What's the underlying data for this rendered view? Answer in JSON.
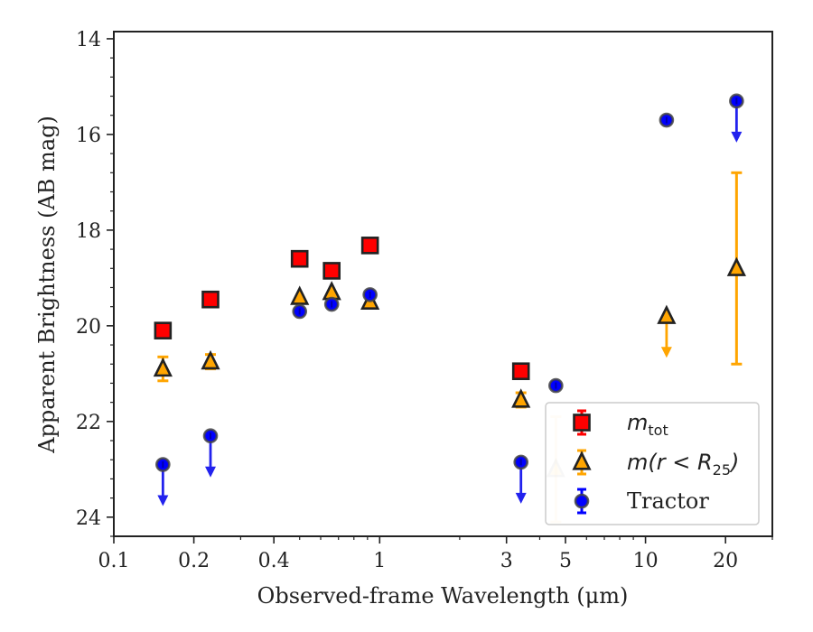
{
  "chart_data": {
    "type": "scatter",
    "title": "",
    "xlabel": "Observed-frame Wavelength (μm)",
    "ylabel": "Apparent Brightness (AB mag)",
    "xscale": "log",
    "xlim": [
      0.1,
      30
    ],
    "ylim": [
      24.4,
      13.85
    ],
    "y_inverted": true,
    "grid": false,
    "legend_position": "lower-right",
    "x_ticks": [
      {
        "value": 0.1,
        "label": "0.1"
      },
      {
        "value": 0.2,
        "label": "0.2"
      },
      {
        "value": 0.4,
        "label": "0.4"
      },
      {
        "value": 1,
        "label": "1"
      },
      {
        "value": 3,
        "label": "3"
      },
      {
        "value": 5,
        "label": "5"
      },
      {
        "value": 10,
        "label": "10"
      },
      {
        "value": 20,
        "label": "20"
      }
    ],
    "y_ticks": [
      {
        "value": 14,
        "label": "14"
      },
      {
        "value": 16,
        "label": "16"
      },
      {
        "value": 18,
        "label": "18"
      },
      {
        "value": 20,
        "label": "20"
      },
      {
        "value": 22,
        "label": "22"
      },
      {
        "value": 24,
        "label": "24"
      }
    ],
    "series": [
      {
        "name": "m_tot",
        "legend_main": "m",
        "legend_sub": "tot",
        "marker": "square",
        "color": "#ff0000",
        "edge_color": "#222222",
        "errorbar_color": "#ff0000",
        "points": [
          {
            "x": 0.153,
            "y": 20.1
          },
          {
            "x": 0.231,
            "y": 19.45
          },
          {
            "x": 0.5,
            "y": 18.6
          },
          {
            "x": 0.66,
            "y": 18.85
          },
          {
            "x": 0.92,
            "y": 18.32
          },
          {
            "x": 3.4,
            "y": 20.95
          }
        ]
      },
      {
        "name": "m(r<R25)",
        "legend_main": "m(r < R",
        "legend_sub": "25",
        "legend_tail": ")",
        "marker": "triangle",
        "color": "#ffa500",
        "edge_color": "#222222",
        "errorbar_color": "#ffa500",
        "points": [
          {
            "x": 0.153,
            "y": 20.9,
            "yerr": 0.25
          },
          {
            "x": 0.231,
            "y": 20.75,
            "yerr": 0.15
          },
          {
            "x": 0.5,
            "y": 19.4
          },
          {
            "x": 0.66,
            "y": 19.3
          },
          {
            "x": 0.92,
            "y": 19.5
          },
          {
            "x": 3.4,
            "y": 21.55,
            "yerr": 0.15
          },
          {
            "x": 4.6,
            "y": 23.0,
            "yerr": 1.1,
            "faded": true
          },
          {
            "x": 12.0,
            "y": 19.8,
            "upper_limit": true
          },
          {
            "x": 22.0,
            "y": 18.8,
            "yerr": 2.0
          }
        ]
      },
      {
        "name": "Tractor",
        "legend_main": "Tractor",
        "marker": "circle",
        "color": "#0000ff",
        "edge_color": "#444444",
        "errorbar_color": "#0000ff",
        "points": [
          {
            "x": 0.153,
            "y": 22.9,
            "upper_limit": true
          },
          {
            "x": 0.231,
            "y": 22.3,
            "upper_limit": true
          },
          {
            "x": 0.5,
            "y": 19.7
          },
          {
            "x": 0.66,
            "y": 19.55
          },
          {
            "x": 0.92,
            "y": 19.35
          },
          {
            "x": 3.4,
            "y": 22.85,
            "upper_limit": true
          },
          {
            "x": 4.6,
            "y": 21.25
          },
          {
            "x": 12.0,
            "y": 15.7
          },
          {
            "x": 22.0,
            "y": 15.3,
            "upper_limit": true
          }
        ]
      }
    ]
  }
}
